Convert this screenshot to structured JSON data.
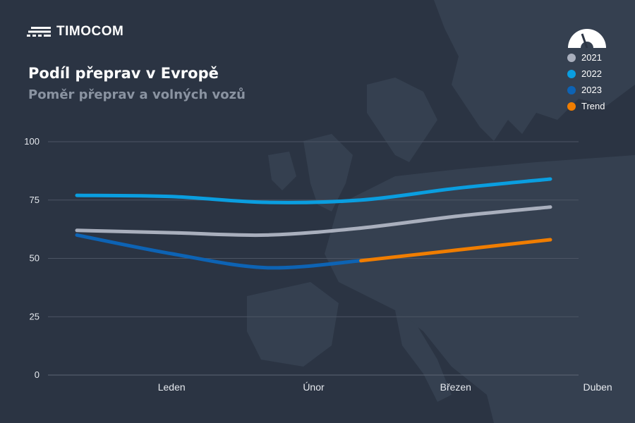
{
  "brand": {
    "name": "TIMOCOM"
  },
  "header": {
    "title": "Podíl přeprav v Evropě",
    "subtitle": "Poměr přeprav a volných vozů"
  },
  "legend": {
    "items": [
      {
        "label": "2021",
        "color": "#a9afbd"
      },
      {
        "label": "2022",
        "color": "#0a9ee0"
      },
      {
        "label": "2023",
        "color": "#0d63b4"
      },
      {
        "label": "Trend",
        "color": "#f07d00"
      }
    ]
  },
  "icons": {
    "brand": "timocom-logo-icon",
    "gauge": "gauge-icon"
  },
  "chart_data": {
    "type": "line",
    "title": "Podíl přeprav v Evropě",
    "subtitle": "Poměr přeprav a volných vozů",
    "categories": [
      "Leden",
      "Únor",
      "Březen",
      "Duben"
    ],
    "y_ticks": [
      "0",
      "25",
      "50",
      "75",
      "100"
    ],
    "ylim": [
      0,
      100
    ],
    "grid": true,
    "legend_position": "top-right",
    "series": [
      {
        "name": "2021",
        "color": "#a9afbd",
        "points": [
          [
            0.5,
            62
          ],
          [
            1.5,
            61
          ],
          [
            2.5,
            60
          ],
          [
            3.5,
            63
          ],
          [
            4.5,
            68
          ],
          [
            5.5,
            72
          ]
        ]
      },
      {
        "name": "2022",
        "color": "#0a9ee0",
        "points": [
          [
            0.5,
            77
          ],
          [
            1.5,
            76.5
          ],
          [
            2.5,
            74
          ],
          [
            3.5,
            75
          ],
          [
            4.5,
            80
          ],
          [
            5.5,
            84
          ]
        ]
      },
      {
        "name": "2023",
        "color": "#0d63b4",
        "points": [
          [
            0.5,
            60
          ],
          [
            1.5,
            52
          ],
          [
            2.5,
            46
          ],
          [
            3.5,
            49
          ]
        ]
      },
      {
        "name": "Trend",
        "color": "#f07d00",
        "points": [
          [
            3.5,
            49
          ],
          [
            5.5,
            58
          ]
        ]
      }
    ]
  }
}
